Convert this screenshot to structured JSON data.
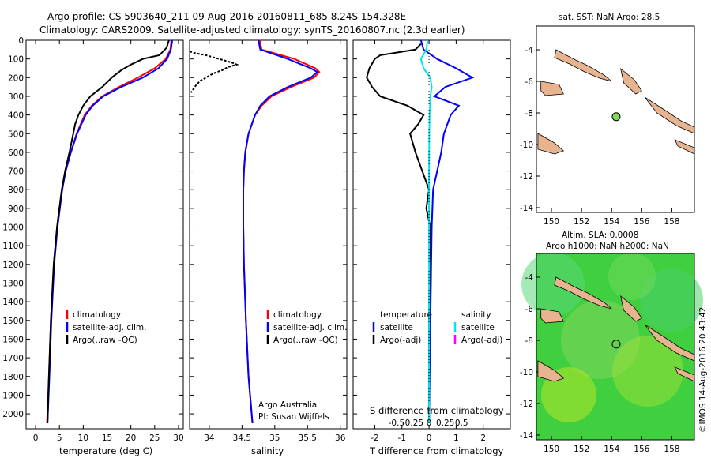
{
  "header": {
    "line1": "Argo profile: CS 5903640_211 09-Aug-2016 20160811_685 8.24S 154.328E",
    "line2": "Climatology: CARS2009. Satellite-adjusted climatology: synTS_20160807.nc (2.3d earlier)"
  },
  "colors": {
    "climatology": "#ff0000",
    "satellite": "#0000ff",
    "argo": "#000000",
    "satellite_salinity": "#00e5ee",
    "argo_salinity": "#ff00ff",
    "land": "#e8b48f",
    "sla_field": "#3fcf3f"
  },
  "chart_data": [
    {
      "name": "temperature-profile",
      "type": "line",
      "xlabel": "temperature (deg C)",
      "xlim": [
        -2,
        31
      ],
      "xticks": [
        "0",
        "5",
        "10",
        "15",
        "20",
        "25",
        "30"
      ],
      "ylim": [
        2080,
        0
      ],
      "yticks": [
        "0",
        "100",
        "200",
        "300",
        "400",
        "500",
        "600",
        "700",
        "800",
        "900",
        "1000",
        "1100",
        "1200",
        "1300",
        "1400",
        "1500",
        "1600",
        "1700",
        "1800",
        "1900",
        "2000"
      ],
      "legend": [
        "climatology",
        "satellite-adj. clim.",
        "Argo(..raw -QC)"
      ],
      "series": [
        {
          "name": "climatology",
          "depth": [
            0,
            50,
            100,
            150,
            200,
            250,
            300,
            350,
            400,
            500,
            600,
            700,
            800,
            1000,
            1200,
            1500,
            1800,
            2050
          ],
          "values": [
            28.5,
            28.3,
            27.3,
            25.0,
            21.5,
            17.5,
            14.0,
            11.8,
            10.3,
            8.6,
            7.4,
            6.3,
            5.5,
            4.5,
            3.8,
            3.2,
            2.8,
            2.4
          ]
        },
        {
          "name": "satellite-adj. clim.",
          "depth": [
            0,
            50,
            100,
            150,
            200,
            250,
            300,
            350,
            400,
            500,
            600,
            700,
            800,
            1000,
            1200,
            1500,
            1800,
            2050
          ],
          "values": [
            28.7,
            28.4,
            27.6,
            25.8,
            22.5,
            18.0,
            14.2,
            12.0,
            10.5,
            8.7,
            7.4,
            6.3,
            5.6,
            4.6,
            3.9,
            3.3,
            2.9,
            2.5
          ]
        },
        {
          "name": "Argo(..raw -QC)",
          "depth": [
            0,
            40,
            80,
            100,
            130,
            160,
            200,
            250,
            300,
            350,
            400,
            450,
            500,
            600,
            700,
            800,
            1000,
            1200,
            1500,
            1800,
            2050
          ],
          "values": [
            28.0,
            27.5,
            26.0,
            22.5,
            20.0,
            18.0,
            16.0,
            14.0,
            11.5,
            10.0,
            9.0,
            8.3,
            7.9,
            7.1,
            6.2,
            5.5,
            4.5,
            3.8,
            3.2,
            2.8,
            2.5
          ]
        }
      ]
    },
    {
      "name": "salinity-profile",
      "type": "line",
      "xlabel": "salinity",
      "xlim": [
        33.7,
        36.1
      ],
      "xticks": [
        "34",
        "34.5",
        "35",
        "35.5",
        "36"
      ],
      "ylim": [
        2080,
        0
      ],
      "legend": [
        "climatology",
        "satellite-adj. clim.",
        "Argo(..raw -QC)"
      ],
      "series": [
        {
          "name": "climatology",
          "depth": [
            0,
            50,
            100,
            150,
            170,
            200,
            250,
            300,
            350,
            400,
            500,
            600,
            700,
            800,
            1000,
            1200,
            1500,
            1800,
            2050
          ],
          "values": [
            34.77,
            34.8,
            35.3,
            35.62,
            35.68,
            35.6,
            35.25,
            34.95,
            34.8,
            34.7,
            34.6,
            34.55,
            34.53,
            34.52,
            34.52,
            34.53,
            34.56,
            34.6,
            34.66
          ]
        },
        {
          "name": "satellite-adj. clim.",
          "depth": [
            0,
            50,
            100,
            150,
            170,
            200,
            250,
            300,
            350,
            400,
            500,
            600,
            700,
            800,
            1000,
            1200,
            1500,
            1800,
            2050
          ],
          "values": [
            34.75,
            34.78,
            35.2,
            35.55,
            35.65,
            35.55,
            35.2,
            34.92,
            34.78,
            34.7,
            34.6,
            34.55,
            34.53,
            34.52,
            34.52,
            34.53,
            34.56,
            34.6,
            34.66
          ]
        },
        {
          "name": "Argo(..raw -QC)",
          "depth": [
            60,
            70,
            80,
            90,
            100,
            110,
            120,
            130,
            140,
            150,
            160,
            170,
            180,
            190,
            200,
            210,
            220,
            230,
            240,
            250,
            260,
            270,
            280
          ],
          "values": [
            33.7,
            33.8,
            33.95,
            34.05,
            34.15,
            34.25,
            34.35,
            34.42,
            34.32,
            34.25,
            34.2,
            34.12,
            34.05,
            34.0,
            33.95,
            33.9,
            33.85,
            33.83,
            33.8,
            33.78,
            33.76,
            33.74,
            33.72
          ]
        }
      ]
    },
    {
      "name": "difference-profile",
      "type": "line",
      "xlabel": "T difference from climatology",
      "xlabel_top": "S difference from climatology",
      "xlim": [
        -2.8,
        3.0
      ],
      "xticks": [
        "-2",
        "-1",
        "0",
        "1",
        "2"
      ],
      "xticks_top": [
        "-0.5",
        "-0.25",
        "0",
        "0.25",
        "0.5"
      ],
      "ylim": [
        2080,
        0
      ],
      "legend_temperature_heading": "temperature",
      "legend_salinity_heading": "salinity",
      "legend_temperature": [
        "satellite",
        "Argo(-adj)"
      ],
      "legend_salinity": [
        "satellite",
        "Argo(-adj)"
      ],
      "series": [
        {
          "name": "T satellite",
          "depth": [
            0,
            50,
            100,
            150,
            200,
            250,
            300,
            350,
            400,
            500,
            600,
            700,
            800,
            1000,
            1200,
            1500,
            1800,
            2050
          ],
          "values": [
            -0.3,
            -0.2,
            0.3,
            1.0,
            1.6,
            0.6,
            0.2,
            1.1,
            0.8,
            0.55,
            0.45,
            0.3,
            0.15,
            0.1,
            0.08,
            0.05,
            0.02,
            0.0
          ]
        },
        {
          "name": "T Argo(-adj)",
          "depth": [
            20,
            50,
            80,
            100,
            150,
            200,
            250,
            300,
            350,
            400,
            450,
            500,
            600,
            700,
            800,
            900,
            1000,
            1200,
            1500,
            1800,
            2050
          ],
          "values": [
            -0.3,
            -0.5,
            -1.8,
            -2.0,
            -2.2,
            -2.3,
            -2.1,
            -1.8,
            -0.8,
            -0.2,
            -0.4,
            -0.7,
            -0.5,
            -0.25,
            0.0,
            -0.1,
            0.05,
            0.02,
            0.0,
            0.0,
            0.0
          ]
        },
        {
          "name": "S satellite",
          "depth": [
            0,
            50,
            100,
            150,
            200,
            250,
            300,
            400,
            500,
            700,
            1000,
            1500,
            2050
          ],
          "values": [
            -0.05,
            -0.1,
            -0.3,
            -0.2,
            0.05,
            0.1,
            0.05,
            0.02,
            0.01,
            0.0,
            0.0,
            0.0,
            0.0
          ]
        }
      ]
    }
  ],
  "maps": {
    "sst": {
      "title": "sat. SST: NaN Argo: 28.5",
      "xticks": [
        "150",
        "152",
        "154",
        "156",
        "158"
      ],
      "yticks": [
        "-4",
        "-6",
        "-8",
        "-10",
        "-12",
        "-14"
      ],
      "argo_marker": {
        "lon": 154.3,
        "lat": -8.24
      }
    },
    "sla": {
      "title_line1": "Altim. SLA: 0.0008",
      "title_line2": "Argo h1000: NaN h2000: NaN",
      "xticks": [
        "150",
        "152",
        "154",
        "156",
        "158"
      ],
      "yticks": [
        "-4",
        "-6",
        "-8",
        "-10",
        "-12",
        "-14"
      ],
      "argo_marker": {
        "lon": 154.3,
        "lat": -8.24
      }
    }
  },
  "credit": {
    "org": "Argo Australia",
    "pi": "PI: Susan Wijffels"
  },
  "watermark": "©IMOS 14-Aug-2016 20:43:42"
}
